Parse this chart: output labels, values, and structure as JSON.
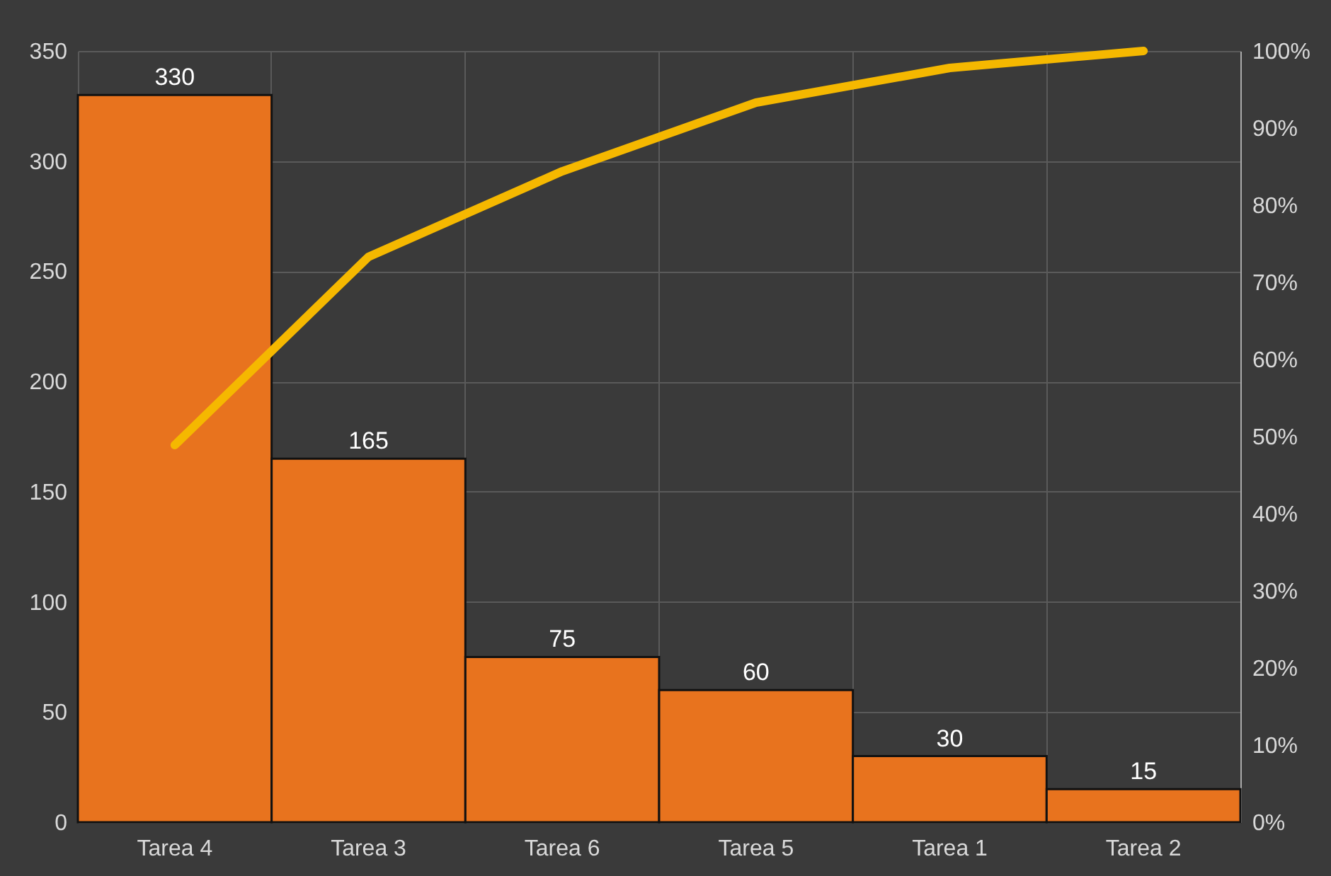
{
  "chart_data": {
    "type": "bar",
    "categories": [
      "Tarea 4",
      "Tarea 3",
      "Tarea 6",
      "Tarea 5",
      "Tarea 1",
      "Tarea 2"
    ],
    "series": [
      {
        "color": "#e8731e",
        "values": [
          330,
          165,
          75,
          60,
          30,
          15
        ],
        "value_labels": [
          "330",
          "165",
          "75",
          "60",
          "30",
          "15"
        ]
      },
      {
        "type": "line",
        "axis": "y2",
        "color": "#f5b800",
        "values": [
          48.9,
          73.3,
          84.4,
          93.3,
          97.8,
          100
        ]
      }
    ],
    "ylim": [
      0,
      350
    ],
    "yticks": [
      0,
      50,
      100,
      150,
      200,
      250,
      300,
      350
    ],
    "y2lim": [
      0,
      100
    ],
    "y2ticks": [
      {
        "value": 0,
        "label": "0%"
      },
      {
        "value": 10,
        "label": "10%"
      },
      {
        "value": 20,
        "label": "20%"
      },
      {
        "value": 30,
        "label": "30%"
      },
      {
        "value": 40,
        "label": "40%"
      },
      {
        "value": 50,
        "label": "50%"
      },
      {
        "value": 60,
        "label": "60%"
      },
      {
        "value": 70,
        "label": "70%"
      },
      {
        "value": 80,
        "label": "80%"
      },
      {
        "value": 90,
        "label": "90%"
      },
      {
        "value": 100,
        "label": "100%"
      }
    ],
    "grid": true,
    "marker": "none",
    "line_style": "solid"
  }
}
